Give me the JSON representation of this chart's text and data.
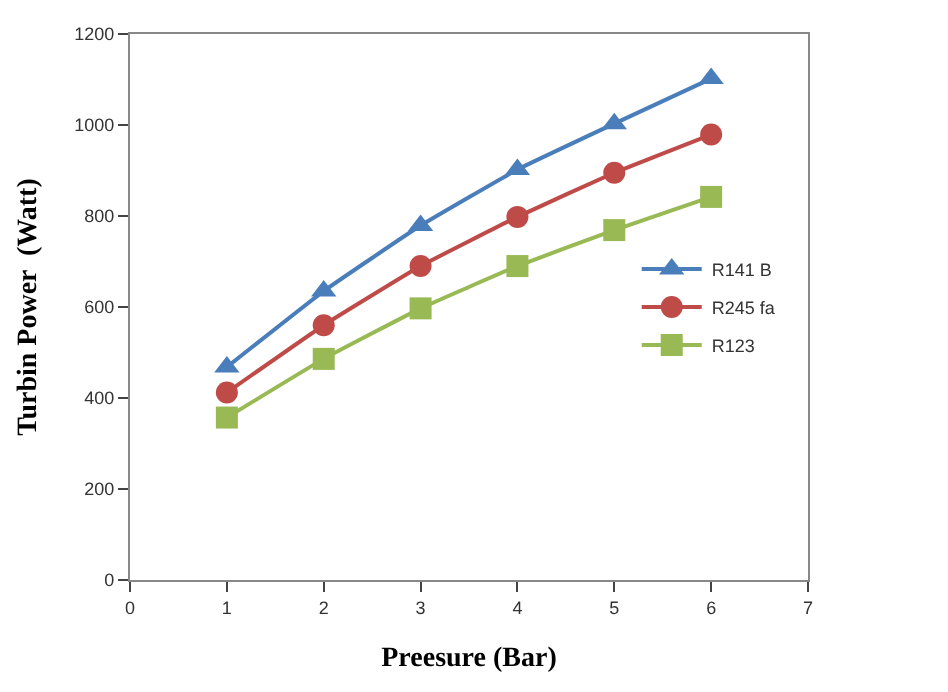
{
  "chart_data": {
    "type": "line",
    "xlabel": "Preesure (Bar)",
    "ylabel": "Turbin Power  (Watt)",
    "x": [
      1,
      2,
      3,
      4,
      5,
      6
    ],
    "series": [
      {
        "name": "R141 B",
        "color": "#4a7ebb",
        "marker": "triangle",
        "values": [
          468,
          635,
          779,
          902,
          1003,
          1102
        ]
      },
      {
        "name": "R245 fa",
        "color": "#be4b48",
        "marker": "circle",
        "values": [
          412,
          560,
          690,
          798,
          895,
          979
        ]
      },
      {
        "name": "R123",
        "color": "#98b954",
        "marker": "square",
        "values": [
          357,
          486,
          597,
          690,
          769,
          842
        ]
      }
    ],
    "xlim": [
      0,
      7
    ],
    "xticks": [
      0,
      1,
      2,
      3,
      4,
      5,
      6,
      7
    ],
    "ylim": [
      0,
      1200
    ],
    "yticks": [
      0,
      200,
      400,
      600,
      800,
      1000,
      1200
    ],
    "legend": "right",
    "line_style": "solid"
  }
}
